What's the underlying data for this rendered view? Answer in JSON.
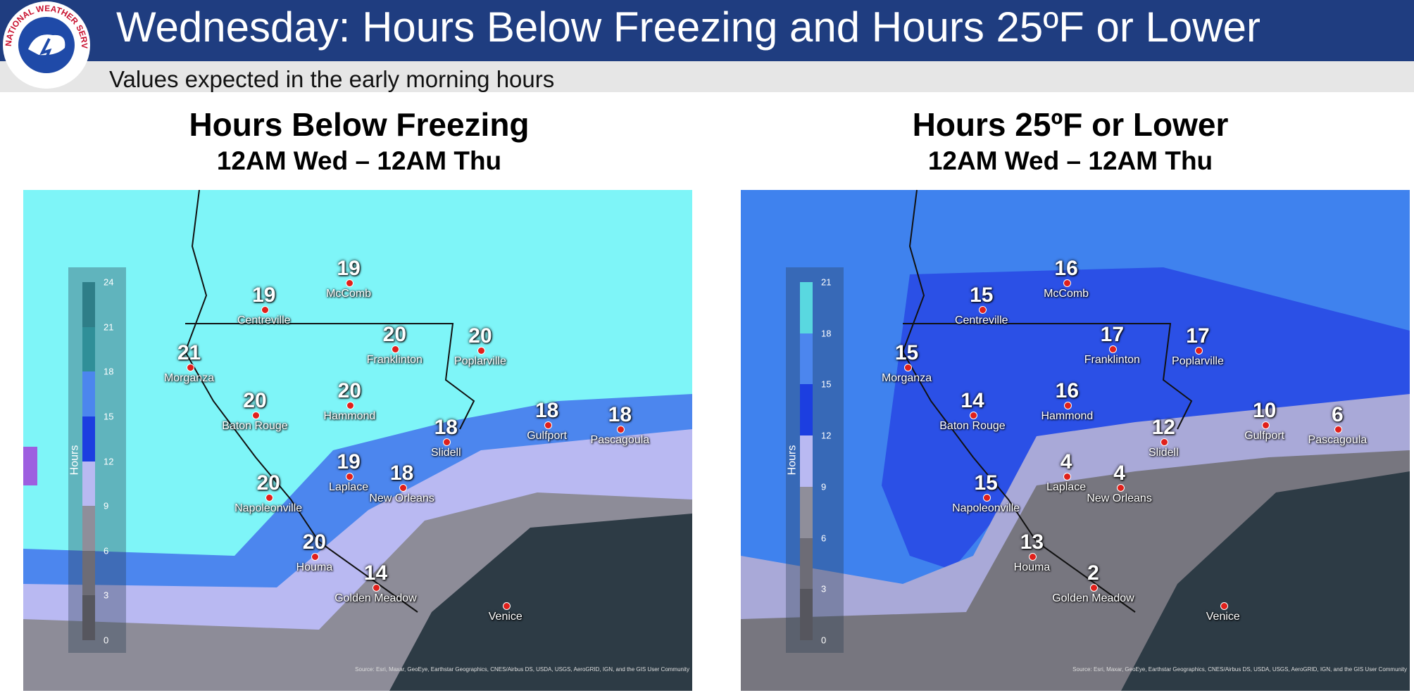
{
  "header": {
    "title": "Wednesday: Hours Below Freezing and Hours 25ºF or Lower",
    "subtitle": "Values expected in the early morning hours",
    "logo_text": "NATIONAL WEATHER SERVICE"
  },
  "cities": [
    "Centreville",
    "McComb",
    "Morganza",
    "Franklinton",
    "Poplarville",
    "Baton Rouge",
    "Hammond",
    "Slidell",
    "Gulfport",
    "Pascagoula",
    "Laplace",
    "New Orleans",
    "Napoleonville",
    "Houma",
    "Golden Meadow",
    "Venice"
  ],
  "panels": [
    {
      "title": "Hours Below Freezing",
      "subtitle": "12AM Wed – 12AM Thu",
      "legend_label": "Hours",
      "legend_ticks": [
        0,
        3,
        6,
        9,
        12,
        15,
        18,
        21,
        24
      ],
      "values": [
        19,
        19,
        21,
        20,
        20,
        20,
        20,
        18,
        18,
        18,
        19,
        18,
        20,
        20,
        14,
        null
      ]
    },
    {
      "title": "Hours 25ºF or Lower",
      "subtitle": "12AM Wed – 12AM Thu",
      "legend_label": "Hours",
      "legend_ticks": [
        0,
        3,
        6,
        9,
        12,
        15,
        18,
        21
      ],
      "values": [
        15,
        16,
        15,
        17,
        17,
        14,
        16,
        12,
        10,
        6,
        4,
        4,
        15,
        13,
        2,
        null
      ]
    }
  ],
  "source": "Source: Esri, Maxar, GeoEye, Earthstar Geographics, CNES/Airbus DS, USDA, USGS, AeroGRID, IGN, and the GIS User Community"
}
